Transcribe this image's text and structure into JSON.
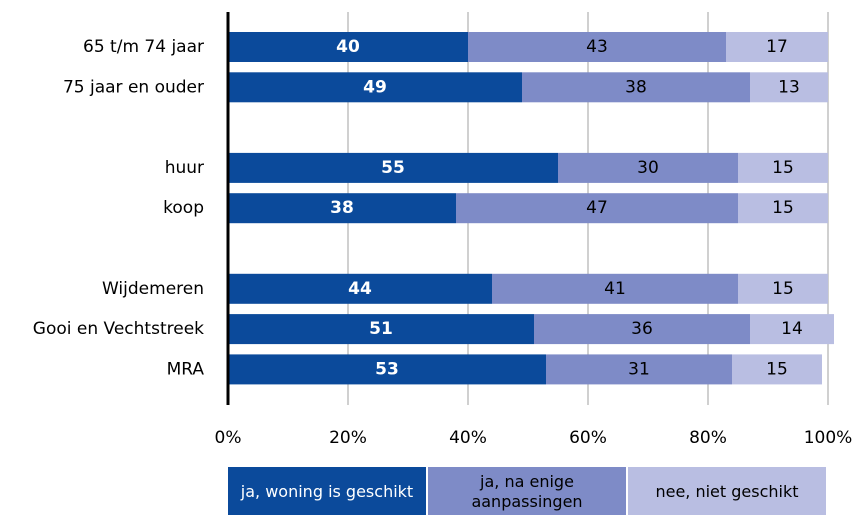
{
  "chart_data": {
    "type": "stacked-bar-horizontal",
    "categories": [
      "65 t/m 74 jaar",
      "75 jaar en ouder",
      null,
      "huur",
      "koop",
      null,
      "Wijdemeren",
      "Gooi en Vechtstreek",
      "MRA"
    ],
    "series": [
      {
        "name": "ja, woning is geschikt",
        "color": "#0b4a9b",
        "values": [
          40,
          49,
          null,
          55,
          38,
          null,
          44,
          51,
          53
        ]
      },
      {
        "name": "ja, na enige aanpassingen",
        "color": "#7e8bc7",
        "values": [
          43,
          38,
          null,
          30,
          47,
          null,
          41,
          36,
          31
        ]
      },
      {
        "name": "nee, niet geschikt",
        "color": "#b9bee2",
        "values": [
          17,
          13,
          null,
          15,
          15,
          null,
          15,
          14,
          15
        ]
      }
    ],
    "xlim": [
      0,
      100
    ],
    "xticks": [
      {
        "value": 0,
        "label": "0%"
      },
      {
        "value": 20,
        "label": "20%"
      },
      {
        "value": 40,
        "label": "40%"
      },
      {
        "value": 60,
        "label": "60%"
      },
      {
        "value": 80,
        "label": "80%"
      },
      {
        "value": 100,
        "label": "100%"
      }
    ],
    "grid": true,
    "legend": "bottom"
  }
}
